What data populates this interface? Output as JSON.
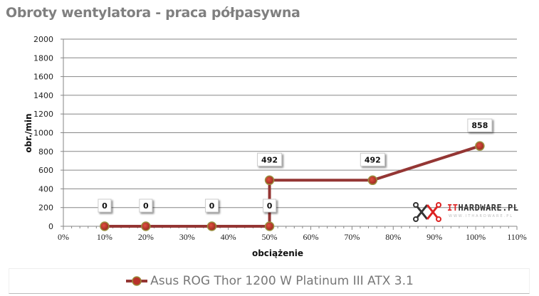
{
  "title": "Obroty wentylatora - praca półpasywna",
  "chart_data": {
    "type": "line",
    "title": "Obroty wentylatora - praca półpasywna",
    "xlabel": "obciążenie",
    "ylabel": "obr./min",
    "xlim": [
      0,
      110
    ],
    "ylim": [
      0,
      2000
    ],
    "x_ticks": [
      "0%",
      "10%",
      "20%",
      "30%",
      "40%",
      "50%",
      "60%",
      "70%",
      "80%",
      "90%",
      "100%",
      "110%"
    ],
    "y_ticks": [
      "0",
      "200",
      "400",
      "600",
      "800",
      "1000",
      "1200",
      "1400",
      "1600",
      "1800",
      "2000"
    ],
    "grid": {
      "horizontal": true,
      "vertical": false
    },
    "legend_position": "bottom",
    "series": [
      {
        "name": "Asus ROG Thor 1200 W Platinum III ATX 3.1",
        "color": "#943634",
        "marker_color": "#c0392b",
        "x": [
          10,
          20,
          36,
          50,
          50,
          75,
          101
        ],
        "values": [
          0,
          0,
          0,
          0,
          492,
          492,
          858
        ],
        "data_labels": [
          "0",
          "0",
          "0",
          "0",
          "492",
          "492",
          "858"
        ]
      }
    ]
  },
  "legend": {
    "label": "Asus ROG Thor 1200 W Platinum III ATX 3.1"
  },
  "watermark": {
    "brand_it": "IT",
    "brand_rest": "HARDWARE.PL",
    "url": "WWW.ITHARDWARE.PL"
  }
}
